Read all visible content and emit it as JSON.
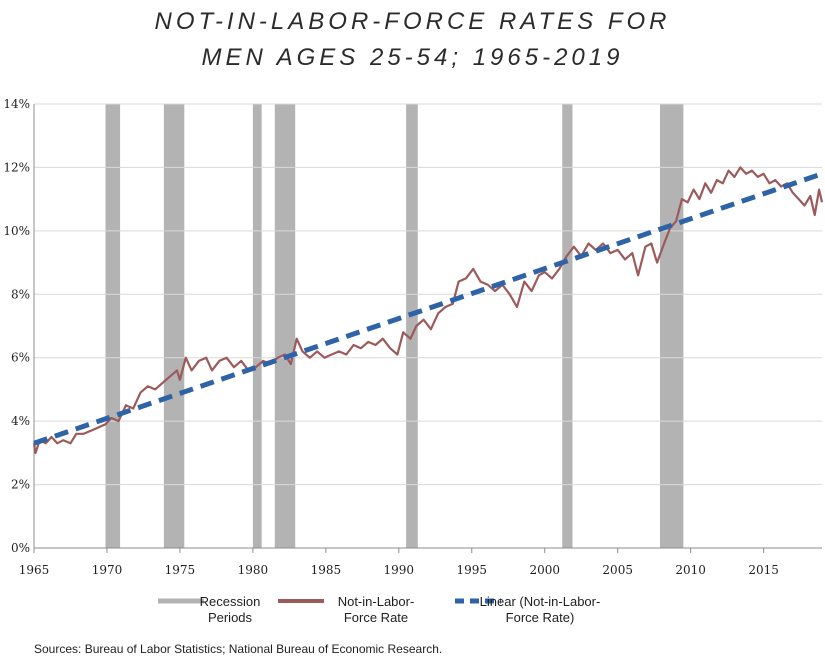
{
  "title": {
    "line1": "NOT-IN-LABOR-FORCE RATES FOR",
    "line2": "MEN AGES 25-54; 1965-2019"
  },
  "source": "Sources: Bureau of Labor Statistics; National Bureau of Economic Research.",
  "colors": {
    "recession": "#b3b3b3",
    "series": "#9c5a5a",
    "trend": "#2e63a8",
    "grid": "#d9d9d9",
    "axis": "#8c8c8c"
  },
  "chart_data": {
    "type": "line",
    "title": "NOT-IN-LABOR-FORCE RATES FOR MEN AGES 25-54; 1965-2019",
    "xlim": [
      1965,
      2019
    ],
    "ylim": [
      0,
      14
    ],
    "x_ticks": [
      {
        "value": 1965,
        "label": "1965"
      },
      {
        "value": 1970,
        "label": "1970"
      },
      {
        "value": 1975,
        "label": "1975"
      },
      {
        "value": 1980,
        "label": "1980"
      },
      {
        "value": 1985,
        "label": "1985"
      },
      {
        "value": 1990,
        "label": "1990"
      },
      {
        "value": 1995,
        "label": "1995"
      },
      {
        "value": 2000,
        "label": "2000"
      },
      {
        "value": 2005,
        "label": "2005"
      },
      {
        "value": 2010,
        "label": "2010"
      },
      {
        "value": 2015,
        "label": "2015"
      }
    ],
    "y_ticks": [
      {
        "value": 0,
        "label": "0%"
      },
      {
        "value": 2,
        "label": "2%"
      },
      {
        "value": 4,
        "label": "4%"
      },
      {
        "value": 6,
        "label": "6%"
      },
      {
        "value": 8,
        "label": "8%"
      },
      {
        "value": 10,
        "label": "10%"
      },
      {
        "value": 12,
        "label": "12%"
      },
      {
        "value": 14,
        "label": "14%"
      }
    ],
    "grid": true,
    "legend_position": "bottom",
    "recessions": [
      {
        "start": 1969.9,
        "end": 1970.9
      },
      {
        "start": 1973.9,
        "end": 1975.3
      },
      {
        "start": 1980.0,
        "end": 1980.6
      },
      {
        "start": 1981.5,
        "end": 1982.9
      },
      {
        "start": 1990.5,
        "end": 1991.3
      },
      {
        "start": 2001.2,
        "end": 2001.9
      },
      {
        "start": 2007.9,
        "end": 2009.5
      }
    ],
    "series": [
      {
        "name": "Recession Periods",
        "kind": "band"
      },
      {
        "name": "Not-in-Labor-Force Rate",
        "kind": "line",
        "points": [
          [
            1965.0,
            3.3
          ],
          [
            1965.1,
            3.0
          ],
          [
            1965.4,
            3.4
          ],
          [
            1965.8,
            3.3
          ],
          [
            1966.2,
            3.5
          ],
          [
            1966.6,
            3.3
          ],
          [
            1967.0,
            3.4
          ],
          [
            1967.5,
            3.3
          ],
          [
            1967.9,
            3.6
          ],
          [
            1968.4,
            3.6
          ],
          [
            1968.9,
            3.7
          ],
          [
            1969.4,
            3.8
          ],
          [
            1969.9,
            3.9
          ],
          [
            1970.3,
            4.1
          ],
          [
            1970.8,
            4.0
          ],
          [
            1971.3,
            4.5
          ],
          [
            1971.8,
            4.4
          ],
          [
            1972.3,
            4.9
          ],
          [
            1972.8,
            5.1
          ],
          [
            1973.3,
            5.0
          ],
          [
            1973.8,
            5.2
          ],
          [
            1974.3,
            5.4
          ],
          [
            1974.8,
            5.6
          ],
          [
            1975.0,
            5.3
          ],
          [
            1975.4,
            6.0
          ],
          [
            1975.8,
            5.6
          ],
          [
            1976.3,
            5.9
          ],
          [
            1976.8,
            6.0
          ],
          [
            1977.2,
            5.6
          ],
          [
            1977.7,
            5.9
          ],
          [
            1978.2,
            6.0
          ],
          [
            1978.7,
            5.7
          ],
          [
            1979.2,
            5.9
          ],
          [
            1979.7,
            5.6
          ],
          [
            1980.2,
            5.7
          ],
          [
            1980.7,
            5.9
          ],
          [
            1981.2,
            5.8
          ],
          [
            1981.7,
            6.0
          ],
          [
            1982.2,
            6.1
          ],
          [
            1982.6,
            5.8
          ],
          [
            1983.0,
            6.6
          ],
          [
            1983.4,
            6.2
          ],
          [
            1983.9,
            6.0
          ],
          [
            1984.4,
            6.2
          ],
          [
            1984.9,
            6.0
          ],
          [
            1985.4,
            6.1
          ],
          [
            1985.9,
            6.2
          ],
          [
            1986.4,
            6.1
          ],
          [
            1986.9,
            6.4
          ],
          [
            1987.4,
            6.3
          ],
          [
            1987.9,
            6.5
          ],
          [
            1988.4,
            6.4
          ],
          [
            1988.9,
            6.6
          ],
          [
            1989.4,
            6.3
          ],
          [
            1989.9,
            6.1
          ],
          [
            1990.3,
            6.8
          ],
          [
            1990.8,
            6.6
          ],
          [
            1991.2,
            7.0
          ],
          [
            1991.7,
            7.2
          ],
          [
            1992.2,
            6.9
          ],
          [
            1992.7,
            7.4
          ],
          [
            1993.2,
            7.6
          ],
          [
            1993.7,
            7.7
          ],
          [
            1994.1,
            8.4
          ],
          [
            1994.6,
            8.5
          ],
          [
            1995.1,
            8.8
          ],
          [
            1995.6,
            8.4
          ],
          [
            1996.1,
            8.3
          ],
          [
            1996.6,
            8.1
          ],
          [
            1997.1,
            8.3
          ],
          [
            1997.6,
            8.0
          ],
          [
            1998.1,
            7.6
          ],
          [
            1998.6,
            8.4
          ],
          [
            1999.1,
            8.1
          ],
          [
            1999.6,
            8.6
          ],
          [
            2000.0,
            8.7
          ],
          [
            2000.5,
            8.5
          ],
          [
            2001.0,
            8.8
          ],
          [
            2001.5,
            9.2
          ],
          [
            2002.0,
            9.5
          ],
          [
            2002.5,
            9.2
          ],
          [
            2003.0,
            9.6
          ],
          [
            2003.5,
            9.4
          ],
          [
            2004.0,
            9.6
          ],
          [
            2004.5,
            9.3
          ],
          [
            2005.0,
            9.4
          ],
          [
            2005.5,
            9.1
          ],
          [
            2006.0,
            9.3
          ],
          [
            2006.4,
            8.6
          ],
          [
            2006.9,
            9.5
          ],
          [
            2007.3,
            9.6
          ],
          [
            2007.7,
            9.0
          ],
          [
            2008.1,
            9.5
          ],
          [
            2008.6,
            10.1
          ],
          [
            2009.0,
            10.3
          ],
          [
            2009.4,
            11.0
          ],
          [
            2009.8,
            10.9
          ],
          [
            2010.2,
            11.3
          ],
          [
            2010.6,
            11.0
          ],
          [
            2011.0,
            11.5
          ],
          [
            2011.4,
            11.2
          ],
          [
            2011.8,
            11.6
          ],
          [
            2012.2,
            11.5
          ],
          [
            2012.6,
            11.9
          ],
          [
            2013.0,
            11.7
          ],
          [
            2013.4,
            12.0
          ],
          [
            2013.8,
            11.8
          ],
          [
            2014.2,
            11.9
          ],
          [
            2014.6,
            11.7
          ],
          [
            2015.0,
            11.8
          ],
          [
            2015.4,
            11.5
          ],
          [
            2015.8,
            11.6
          ],
          [
            2016.2,
            11.4
          ],
          [
            2016.6,
            11.5
          ],
          [
            2017.0,
            11.2
          ],
          [
            2017.4,
            11.0
          ],
          [
            2017.8,
            10.8
          ],
          [
            2018.2,
            11.1
          ],
          [
            2018.5,
            10.5
          ],
          [
            2018.8,
            11.3
          ],
          [
            2019.0,
            10.9
          ]
        ]
      },
      {
        "name": "Linear (Not-in-Labor-Force Rate)",
        "kind": "trend",
        "points": [
          [
            1965,
            3.3
          ],
          [
            2019,
            11.8
          ]
        ]
      }
    ],
    "legend": [
      {
        "lines": [
          "Recession",
          "Periods"
        ]
      },
      {
        "lines": [
          "Not-in-Labor-",
          "Force Rate"
        ]
      },
      {
        "lines": [
          "Linear (Not-in-Labor-",
          "Force Rate)"
        ]
      }
    ]
  }
}
